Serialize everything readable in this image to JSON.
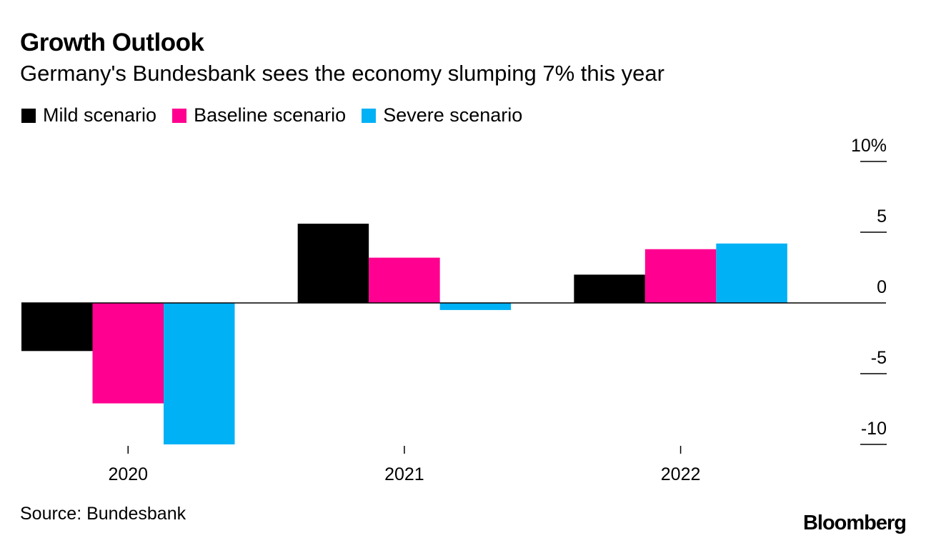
{
  "header": {
    "title": "Growth Outlook",
    "subtitle": "Germany's Bundesbank sees the economy slumping 7% this year"
  },
  "legend": [
    {
      "label": "Mild scenario",
      "color": "#000000"
    },
    {
      "label": "Baseline scenario",
      "color": "#ff0090"
    },
    {
      "label": "Severe scenario",
      "color": "#00b1f5"
    }
  ],
  "footer": {
    "source": "Source: Bundesbank",
    "logo": "Bloomberg"
  },
  "chart_data": {
    "type": "bar",
    "title": "Growth Outlook",
    "subtitle": "Germany's Bundesbank sees the economy slumping 7% this year",
    "categories": [
      "2020",
      "2021",
      "2022"
    ],
    "series": [
      {
        "name": "Mild scenario",
        "color": "#000000",
        "values": [
          -3.4,
          5.6,
          2.0
        ]
      },
      {
        "name": "Baseline scenario",
        "color": "#ff0090",
        "values": [
          -7.1,
          3.2,
          3.8
        ]
      },
      {
        "name": "Severe scenario",
        "color": "#00b1f5",
        "values": [
          -10.0,
          -0.5,
          4.2
        ]
      }
    ],
    "ylim": [
      -10,
      10
    ],
    "yticks": [
      10,
      5,
      0,
      -5,
      -10
    ],
    "ytick_labels": [
      "10%",
      "5",
      "0",
      "-5",
      "-10"
    ],
    "xlabel": "",
    "ylabel": "",
    "grid": false,
    "legend_position": "top-left",
    "y_axis_side": "right"
  }
}
